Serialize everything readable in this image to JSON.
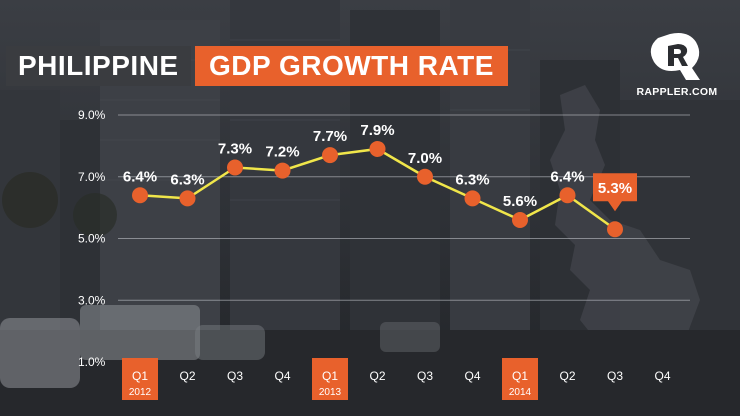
{
  "title": {
    "part1": "PHILIPPINE",
    "part2": "GDP GROWTH RATE"
  },
  "brand": {
    "name": "RAPPLER.COM"
  },
  "colors": {
    "accent": "#e8612c",
    "line": "#f0e64a",
    "grid": "#c9ccd2",
    "title_dark": "#3a3c40",
    "text": "#ffffff"
  },
  "chart_data": {
    "type": "line",
    "title": "PHILIPPINE GDP GROWTH RATE",
    "xlabel": "",
    "ylabel": "",
    "ylim": [
      1.0,
      9.0
    ],
    "y_ticks": [
      "1.0%",
      "3.0%",
      "5.0%",
      "7.0%",
      "9.0%"
    ],
    "y_tick_values": [
      1.0,
      3.0,
      5.0,
      7.0,
      9.0
    ],
    "grid": true,
    "categories": [
      "Q1",
      "Q2",
      "Q3",
      "Q4",
      "Q1",
      "Q2",
      "Q3",
      "Q4",
      "Q1",
      "Q2",
      "Q3",
      "Q4"
    ],
    "year_labels": [
      "2012",
      "",
      "",
      "",
      "2013",
      "",
      "",
      "",
      "2014",
      "",
      "",
      ""
    ],
    "highlight_categories": [
      0,
      4,
      8
    ],
    "series": [
      {
        "values": [
          6.4,
          6.3,
          7.3,
          7.2,
          7.7,
          7.9,
          7.0,
          6.3,
          5.6,
          6.4,
          5.3,
          null
        ],
        "labels": [
          "6.4%",
          "6.3%",
          "7.3%",
          "7.2%",
          "7.7%",
          "7.9%",
          "7.0%",
          "6.3%",
          "5.6%",
          "6.4%",
          "5.3%",
          ""
        ]
      }
    ],
    "highlight_point": 10
  }
}
